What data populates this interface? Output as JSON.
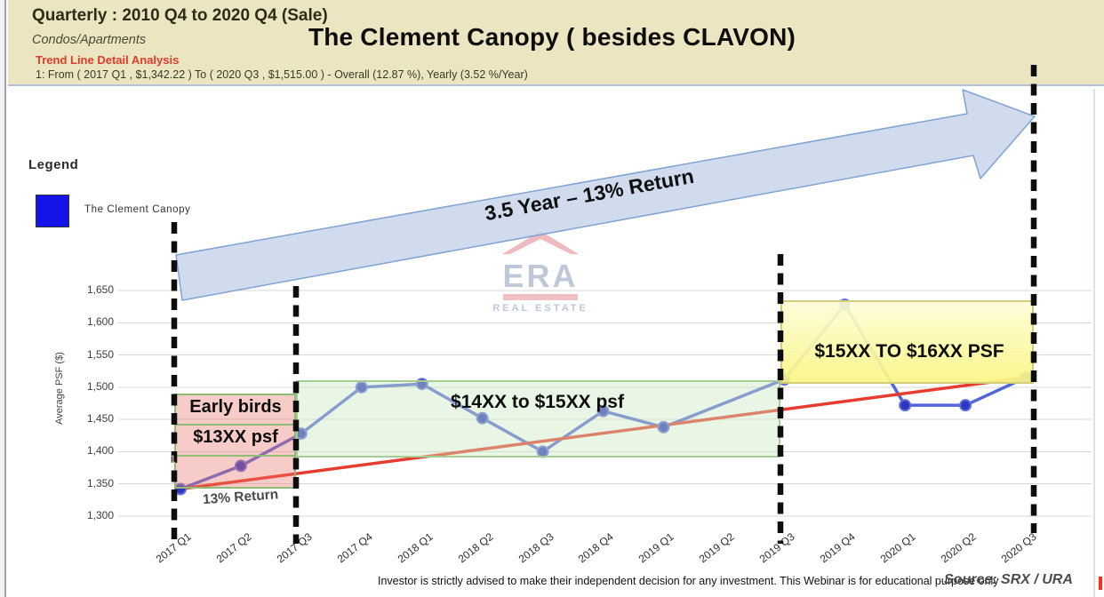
{
  "header": {
    "range_title": "Quarterly : 2010 Q4 to 2020 Q4 (Sale)",
    "property_type": "Condos/Apartments",
    "trend_label": "Trend Line Detail Analysis",
    "trend_detail": "1: From ( 2017 Q1 , $1,342.22 ) To ( 2020 Q3 , $1,515.00 ) - Overall (12.87 %), Yearly (3.52 %/Year)",
    "main_title": "The Clement Canopy ( besides CLAVON)"
  },
  "legend": {
    "title": "Legend",
    "series_label": "The Clement Canopy",
    "swatch_color": "#1414e8"
  },
  "watermark": {
    "wordmark": "ERA",
    "subtext": "REAL ESTATE"
  },
  "annotations": {
    "arrow_label": "3.5 Year – 13% Return",
    "early_birds_line1": "Early birds",
    "early_birds_line2": "$13XX psf",
    "mid_range": "$14XX to $15XX psf",
    "high_range": "$15XX TO $16XX PSF",
    "return_label": "13% Return",
    "trend_point_label": "1"
  },
  "footer": {
    "disclaimer": "Investor is strictly advised to make their independent decision for any investment. This Webinar is for educational purpose only",
    "source": "Source: SRX / URA"
  },
  "chart_data": {
    "type": "line",
    "title": "The Clement Canopy ( besides CLAVON)",
    "xlabel": "",
    "ylabel": "Average PSF ($)",
    "ylim": [
      1300,
      1650
    ],
    "yticks": [
      1300,
      1350,
      1400,
      1450,
      1500,
      1550,
      1600,
      1650
    ],
    "grid": true,
    "legend_position": "top-left",
    "categories": [
      "2017 Q1",
      "2017 Q2",
      "2017 Q3",
      "2017 Q4",
      "2018 Q1",
      "2018 Q2",
      "2018 Q3",
      "2018 Q4",
      "2019 Q1",
      "2019 Q2",
      "2019 Q3",
      "2019 Q4",
      "2020 Q1",
      "2020 Q2",
      "2020 Q3"
    ],
    "series": [
      {
        "name": "The Clement Canopy",
        "line_color": "#4459d4",
        "marker_color": "#2c36c0",
        "values": [
          1342,
          1378,
          1428,
          1500,
          1505,
          1452,
          1400,
          1463,
          1438,
          null,
          1512,
          1628,
          1472,
          1472,
          1515
        ]
      }
    ],
    "trend_line": {
      "from": {
        "category": "2017 Q1",
        "value": 1342.22
      },
      "to": {
        "category": "2020 Q3",
        "value": 1515.0
      },
      "color": "#e63c2e"
    },
    "dashed_markers": [
      "2017 Q1",
      "2017 Q3",
      "2019 Q3",
      "2020 Q3"
    ],
    "zones": [
      {
        "label": "Early birds $13XX psf",
        "from": "2017 Q1",
        "to": "2017 Q3",
        "value_top": 1490,
        "value_bottom": 1343,
        "style": "pink"
      },
      {
        "label": "$14XX to $15XX psf",
        "from": "2017 Q3",
        "to": "2019 Q3",
        "value_top": 1511,
        "value_bottom": 1391,
        "style": "green"
      },
      {
        "label": "$15XX TO $16XX PSF",
        "from": "2019 Q3",
        "to": "2020 Q3",
        "value_top": 1635,
        "value_bottom": 1505,
        "style": "yellow"
      }
    ]
  }
}
